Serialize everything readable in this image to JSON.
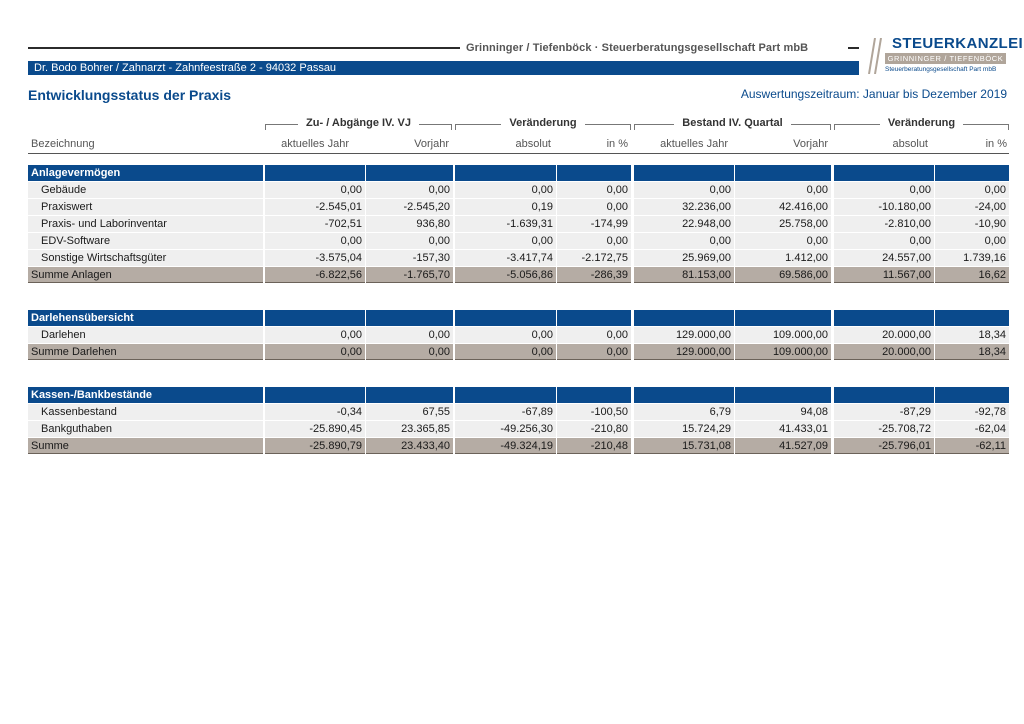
{
  "header": {
    "firm_name": "Grinninger / Tiefenböck · Steuerberatungsgesellschaft Part mbB",
    "client_info": "Dr. Bodo Bohrer / Zahnarzt  -  Zahnfeestraße 2  -  94032 Passau",
    "logo": {
      "title": "STEUERKANZLEI",
      "names": "GRINNINGER / TIEFENBÖCK",
      "subtitle": "Steuerberatungsgesellschaft Part mbB"
    },
    "page_title": "Entwicklungsstatus der Praxis",
    "period": "Auswertungszeitraum: Januar bis Dezember 2019"
  },
  "colors": {
    "primary": "#0a4a8c",
    "sum_row": "#b5aca4",
    "data_row": "#efefef"
  },
  "table": {
    "groups": [
      "Zu- / Abgänge IV. VJ",
      "Veränderung",
      "Bestand IV. Quartal",
      "Veränderung"
    ],
    "columns": [
      "Bezeichnung",
      "aktuelles Jahr",
      "Vorjahr",
      "absolut",
      "in %",
      "aktuelles Jahr",
      "Vorjahr",
      "absolut",
      "in %"
    ],
    "rows": [
      {
        "type": "sec",
        "label": "Anlagevermögen",
        "values": [
          "",
          "",
          "",
          "",
          "",
          "",
          "",
          ""
        ]
      },
      {
        "type": "data",
        "label": "Gebäude",
        "values": [
          "0,00",
          "0,00",
          "0,00",
          "0,00",
          "0,00",
          "0,00",
          "0,00",
          "0,00"
        ]
      },
      {
        "type": "data",
        "label": "Praxiswert",
        "values": [
          "-2.545,01",
          "-2.545,20",
          "0,19",
          "0,00",
          "32.236,00",
          "42.416,00",
          "-10.180,00",
          "-24,00"
        ]
      },
      {
        "type": "data",
        "label": "Praxis- und Laborinventar",
        "values": [
          "-702,51",
          "936,80",
          "-1.639,31",
          "-174,99",
          "22.948,00",
          "25.758,00",
          "-2.810,00",
          "-10,90"
        ]
      },
      {
        "type": "data",
        "label": "EDV-Software",
        "values": [
          "0,00",
          "0,00",
          "0,00",
          "0,00",
          "0,00",
          "0,00",
          "0,00",
          "0,00"
        ]
      },
      {
        "type": "data",
        "label": "Sonstige Wirtschaftsgüter",
        "values": [
          "-3.575,04",
          "-157,30",
          "-3.417,74",
          "-2.172,75",
          "25.969,00",
          "1.412,00",
          "24.557,00",
          "1.739,16"
        ]
      },
      {
        "type": "sum",
        "label": "Summe Anlagen",
        "values": [
          "-6.822,56",
          "-1.765,70",
          "-5.056,86",
          "-286,39",
          "81.153,00",
          "69.586,00",
          "11.567,00",
          "16,62"
        ]
      },
      {
        "type": "gap",
        "label": "",
        "values": []
      },
      {
        "type": "sec",
        "label": "Darlehensübersicht",
        "values": [
          "",
          "",
          "",
          "",
          "",
          "",
          "",
          ""
        ]
      },
      {
        "type": "data",
        "label": "Darlehen",
        "values": [
          "0,00",
          "0,00",
          "0,00",
          "0,00",
          "129.000,00",
          "109.000,00",
          "20.000,00",
          "18,34"
        ]
      },
      {
        "type": "sum",
        "label": "Summe Darlehen",
        "values": [
          "0,00",
          "0,00",
          "0,00",
          "0,00",
          "129.000,00",
          "109.000,00",
          "20.000,00",
          "18,34"
        ]
      },
      {
        "type": "gap",
        "label": "",
        "values": []
      },
      {
        "type": "sec",
        "label": "Kassen-/Bankbestände",
        "values": [
          "",
          "",
          "",
          "",
          "",
          "",
          "",
          ""
        ]
      },
      {
        "type": "data",
        "label": "Kassenbestand",
        "values": [
          "-0,34",
          "67,55",
          "-67,89",
          "-100,50",
          "6,79",
          "94,08",
          "-87,29",
          "-92,78"
        ]
      },
      {
        "type": "data",
        "label": "Bankguthaben",
        "values": [
          "-25.890,45",
          "23.365,85",
          "-49.256,30",
          "-210,80",
          "15.724,29",
          "41.433,01",
          "-25.708,72",
          "-62,04"
        ]
      },
      {
        "type": "sum",
        "label": "Summe",
        "values": [
          "-25.890,79",
          "23.433,40",
          "-49.324,19",
          "-210,48",
          "15.731,08",
          "41.527,09",
          "-25.796,01",
          "-62,11"
        ]
      }
    ]
  }
}
